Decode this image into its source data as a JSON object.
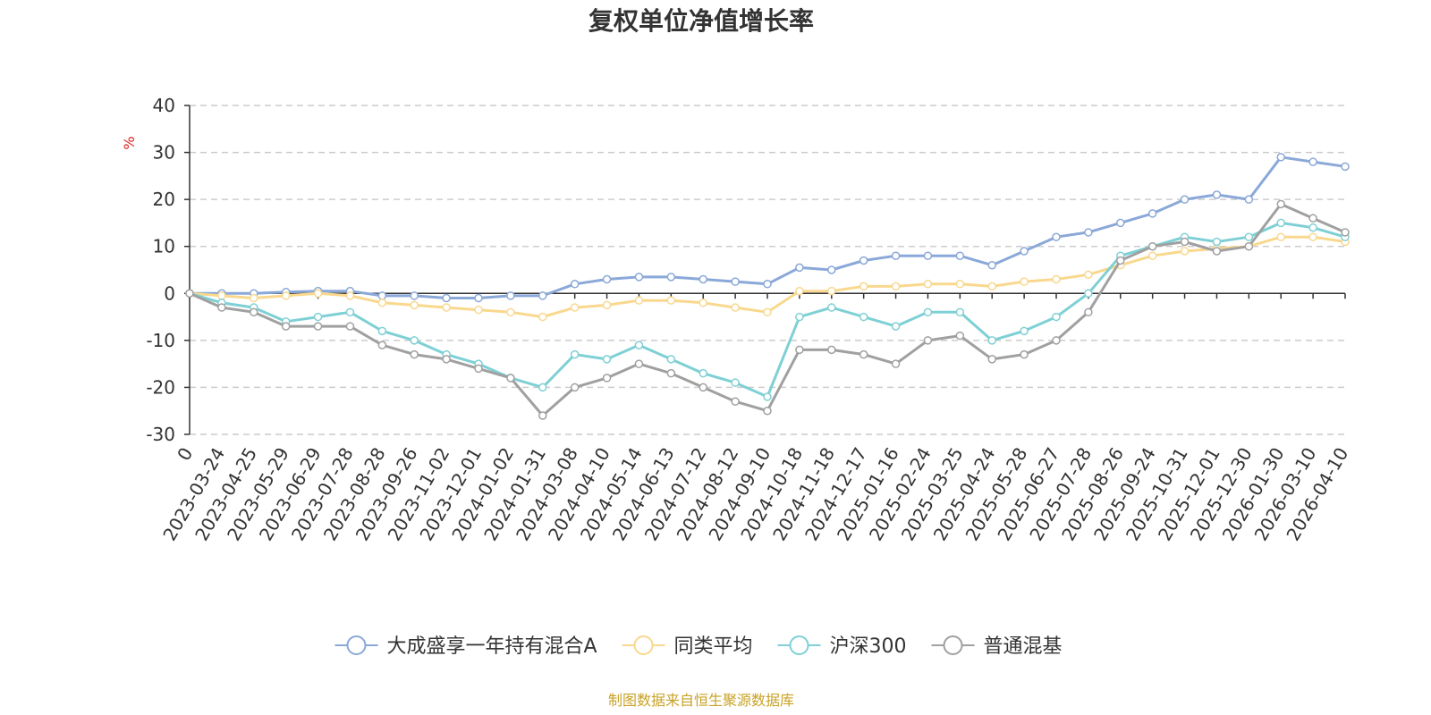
{
  "chart_data": {
    "type": "line",
    "title": "复权单位净值增长率",
    "ylabel": "%",
    "ylim": [
      -30,
      40
    ],
    "yticks": [
      40,
      30,
      20,
      10,
      0,
      -10,
      -20,
      -30
    ],
    "grid": true,
    "legend_position": "bottom",
    "x_tick_labels": [
      "0",
      "2023-03-24",
      "2023-04-25",
      "2023-05-29",
      "2023-06-29",
      "2023-07-28",
      "2023-08-28",
      "2023-09-26",
      "2023-11-02",
      "2023-12-01",
      "2024-01-02",
      "2024-01-31",
      "2024-03-08",
      "2024-04-10",
      "2024-05-14",
      "2024-06-13",
      "2024-07-12",
      "2024-08-12",
      "2024-09-10",
      "2024-10-18",
      "2024-11-18",
      "2024-12-17",
      "2025-01-16",
      "2025-02-24",
      "2025-03-25",
      "2025-04-24",
      "2025-05-28",
      "2025-06-27",
      "2025-07-28",
      "2025-08-26",
      "2025-09-24",
      "2025-10-31",
      "2025-12-01",
      "2025-12-30",
      "2026-01-30",
      "2026-03-10",
      "2026-04-10"
    ],
    "series": [
      {
        "name": "大成盛享一年持有混合A",
        "color": "#8aa8d8",
        "values": [
          0,
          0,
          0,
          0.3,
          0.5,
          0.5,
          -0.5,
          -0.5,
          -1,
          -1,
          -0.5,
          -0.5,
          2,
          3,
          3.5,
          3.5,
          3,
          2.5,
          2,
          5.5,
          5,
          7,
          8,
          8,
          8,
          6,
          9,
          12,
          13,
          15,
          17,
          20,
          21,
          20,
          29,
          28,
          27
        ]
      },
      {
        "name": "同类平均",
        "color": "#f9d88e",
        "values": [
          0,
          -0.5,
          -1,
          -0.5,
          0,
          -0.5,
          -2,
          -2.5,
          -3,
          -3.5,
          -4,
          -5,
          -3,
          -2.5,
          -1.5,
          -1.5,
          -2,
          -3,
          -4,
          0.5,
          0.5,
          1.5,
          1.5,
          2,
          2,
          1.5,
          2.5,
          3,
          4,
          6,
          8,
          9,
          9.5,
          10,
          12,
          12,
          11
        ]
      },
      {
        "name": "沪深300",
        "color": "#7ed0d5",
        "values": [
          0,
          -2,
          -3,
          -6,
          -5,
          -4,
          -8,
          -10,
          -13,
          -15,
          -18,
          -20,
          -13,
          -14,
          -11,
          -14,
          -17,
          -19,
          -22,
          -5,
          -3,
          -5,
          -7,
          -4,
          -4,
          -10,
          -8,
          -5,
          0,
          8,
          10,
          12,
          11,
          12,
          15,
          14,
          12
        ]
      },
      {
        "name": "普通混基",
        "color": "#a0a0a0",
        "values": [
          0,
          -3,
          -4,
          -7,
          -7,
          -7,
          -11,
          -13,
          -14,
          -16,
          -18,
          -26,
          -20,
          -18,
          -15,
          -17,
          -20,
          -23,
          -25,
          -12,
          -12,
          -13,
          -15,
          -10,
          -9,
          -14,
          -13,
          -10,
          -4,
          7,
          10,
          11,
          9,
          10,
          19,
          16,
          13
        ]
      }
    ]
  },
  "source_text": "制图数据来自恒生聚源数据库",
  "colors": {
    "source": "#c9a227",
    "unit": "#e02020",
    "grid": "#cccccc",
    "axis": "#333333"
  }
}
